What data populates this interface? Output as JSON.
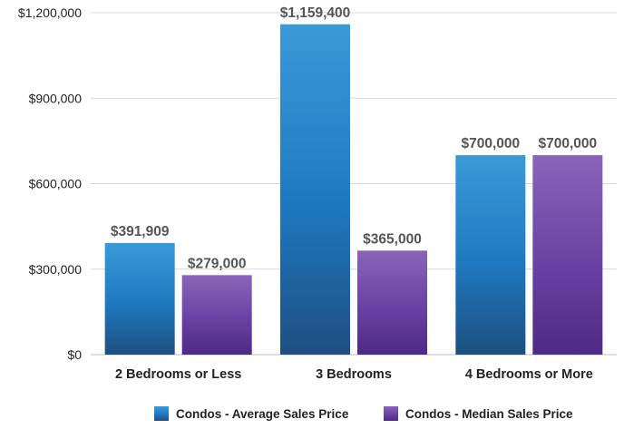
{
  "colors": {
    "average_top": "#3a9ad9",
    "average_mid": "#1f78bf",
    "average_bottom": "#1d4f80",
    "median_top": "#8a64b8",
    "median_mid": "#6a41a3",
    "median_bottom": "#4e2986",
    "grid": "#d9d9d9",
    "axis": "#bdbdbd"
  },
  "chart_data": {
    "type": "bar",
    "title": "",
    "xlabel": "",
    "ylabel": "",
    "ylim": [
      0,
      1200000
    ],
    "yticks": [
      0,
      300000,
      600000,
      900000,
      1200000
    ],
    "ytick_labels": [
      "$0",
      "$300,000",
      "$600,000",
      "$900,000",
      "$1,200,000"
    ],
    "categories": [
      "2 Bedrooms or Less",
      "3 Bedrooms",
      "4 Bedrooms or More"
    ],
    "series": [
      {
        "name": "Condos - Average Sales Price",
        "values": [
          391909,
          1159400,
          700000
        ],
        "labels": [
          "$391,909",
          "$1,159,400",
          "$700,000"
        ]
      },
      {
        "name": "Condos - Median Sales Price",
        "values": [
          279000,
          365000,
          700000
        ],
        "labels": [
          "$279,000",
          "$365,000",
          "$700,000"
        ]
      }
    ],
    "grid": true,
    "legend_position": "bottom-center"
  }
}
